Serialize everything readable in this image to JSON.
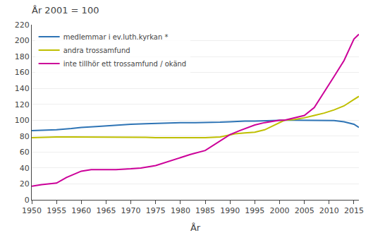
{
  "chart_data": {
    "type": "line",
    "title": "År 2001 = 100",
    "xlabel": "År",
    "xlim": [
      1950,
      2016
    ],
    "ylim": [
      0,
      220
    ],
    "xticks": [
      1950,
      1955,
      1960,
      1965,
      1970,
      1975,
      1980,
      1985,
      1990,
      1995,
      2000,
      2005,
      2010,
      2015
    ],
    "yticks": [
      0,
      20,
      40,
      60,
      80,
      100,
      120,
      140,
      160,
      180,
      200,
      220
    ],
    "grid": "y",
    "legend": "upper left",
    "series": [
      {
        "name": "medlemmar i ev.luth.kyrkan *",
        "color": "#2E74B5",
        "x": [
          1950,
          1952,
          1955,
          1958,
          1960,
          1963,
          1965,
          1968,
          1970,
          1973,
          1975,
          1978,
          1980,
          1983,
          1985,
          1988,
          1990,
          1993,
          1995,
          1997,
          2000,
          2001,
          2003,
          2005,
          2007,
          2009,
          2011,
          2013,
          2015,
          2016
        ],
        "values": [
          87,
          87.5,
          88,
          89.5,
          91,
          92,
          93,
          94,
          95,
          95.5,
          96,
          96.5,
          97,
          97,
          97,
          97.5,
          98,
          99,
          99,
          99.5,
          100,
          100,
          100,
          100,
          100,
          100,
          99.5,
          98,
          95,
          91
        ]
      },
      {
        "name": "andra trossamfund",
        "color": "#BFBF00",
        "x": [
          1950,
          1952,
          1955,
          1958,
          1960,
          1963,
          1965,
          1968,
          1970,
          1973,
          1975,
          1978,
          1980,
          1983,
          1985,
          1988,
          1990,
          1991,
          1993,
          1995,
          1997,
          2000,
          2001,
          2003,
          2005,
          2007,
          2009,
          2011,
          2013,
          2015,
          2016
        ],
        "values": [
          78,
          78.5,
          79,
          79,
          79,
          79,
          79,
          79,
          79,
          78.5,
          78,
          78,
          78,
          78,
          78,
          79,
          82,
          83,
          84,
          85,
          88,
          97,
          100,
          101,
          103,
          106,
          109,
          113,
          118,
          126,
          130
        ]
      },
      {
        "name": "inte tillhör ett trossamfund / okänd",
        "color": "#CC0099",
        "x": [
          1950,
          1952,
          1955,
          1957,
          1960,
          1962,
          1965,
          1967,
          1970,
          1972,
          1975,
          1977,
          1980,
          1982,
          1985,
          1987,
          1990,
          1992,
          1995,
          1997,
          2000,
          2001,
          2003,
          2005,
          2007,
          2009,
          2011,
          2013,
          2015,
          2016
        ],
        "values": [
          17,
          19,
          21,
          28,
          36,
          38,
          38,
          38,
          39,
          40,
          43,
          47,
          53,
          57,
          62,
          70,
          82,
          87,
          94,
          97,
          100,
          100,
          103,
          106,
          116,
          135,
          155,
          175,
          202,
          208
        ]
      }
    ]
  }
}
